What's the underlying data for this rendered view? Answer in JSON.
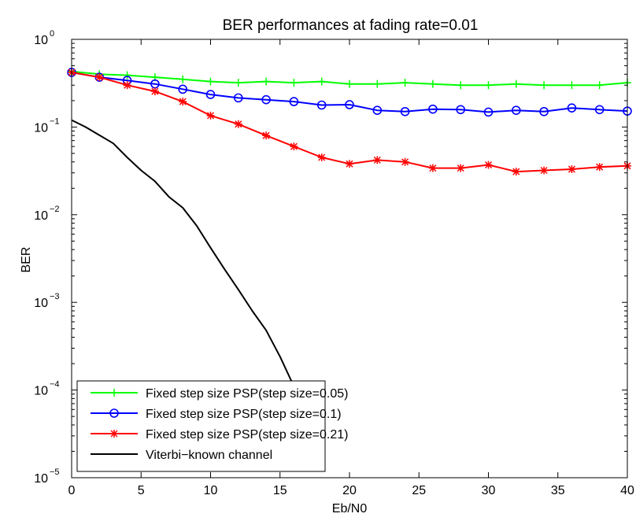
{
  "chart_data": {
    "type": "line",
    "title": "BER performances at fading rate=0.01",
    "xlabel": "Eb/N0",
    "ylabel": "BER",
    "xlim": [
      0,
      40
    ],
    "ylim": [
      1e-05,
      1
    ],
    "yscale": "log",
    "grid": false,
    "legend_position": "bottom-left",
    "x_ticks": [
      0,
      5,
      10,
      15,
      20,
      25,
      30,
      35,
      40
    ],
    "y_ticks": [
      {
        "value": 1e-05,
        "base": "10",
        "exp": "−5"
      },
      {
        "value": 0.0001,
        "base": "10",
        "exp": "−4"
      },
      {
        "value": 0.001,
        "base": "10",
        "exp": "−3"
      },
      {
        "value": 0.01,
        "base": "10",
        "exp": "−2"
      },
      {
        "value": 0.1,
        "base": "10",
        "exp": "−1"
      },
      {
        "value": 1,
        "base": "10",
        "exp": "0"
      }
    ],
    "series": [
      {
        "name": "Fixed step size PSP(step size=0.05)",
        "color": "#00ff00",
        "marker": "plus",
        "x": [
          0,
          2,
          4,
          6,
          8,
          10,
          12,
          14,
          16,
          18,
          20,
          22,
          24,
          26,
          28,
          30,
          32,
          34,
          36,
          38,
          40
        ],
        "y": [
          0.43,
          0.4,
          0.39,
          0.37,
          0.35,
          0.33,
          0.32,
          0.33,
          0.32,
          0.33,
          0.31,
          0.31,
          0.32,
          0.31,
          0.3,
          0.3,
          0.31,
          0.3,
          0.3,
          0.3,
          0.32
        ]
      },
      {
        "name": "Fixed step size PSP(step size=0.1)",
        "color": "#0000ff",
        "marker": "circle",
        "x": [
          0,
          2,
          4,
          6,
          8,
          10,
          12,
          14,
          16,
          18,
          20,
          22,
          24,
          26,
          28,
          30,
          32,
          34,
          36,
          38,
          40
        ],
        "y": [
          0.42,
          0.37,
          0.34,
          0.31,
          0.27,
          0.235,
          0.215,
          0.205,
          0.195,
          0.178,
          0.18,
          0.155,
          0.15,
          0.16,
          0.158,
          0.148,
          0.155,
          0.15,
          0.165,
          0.158,
          0.152
        ]
      },
      {
        "name": "Fixed step size PSP(step size=0.21)",
        "color": "#ff0000",
        "marker": "asterisk",
        "x": [
          0,
          2,
          4,
          6,
          8,
          10,
          12,
          14,
          16,
          18,
          20,
          22,
          24,
          26,
          28,
          30,
          32,
          34,
          36,
          38,
          40
        ],
        "y": [
          0.42,
          0.37,
          0.3,
          0.255,
          0.195,
          0.135,
          0.108,
          0.08,
          0.06,
          0.045,
          0.038,
          0.042,
          0.04,
          0.034,
          0.034,
          0.037,
          0.031,
          0.032,
          0.033,
          0.035,
          0.036
        ]
      },
      {
        "name": "Viterbi−known channel",
        "color": "#000000",
        "marker": "none",
        "x": [
          0,
          1,
          3,
          4,
          5,
          6,
          7,
          8,
          9,
          10,
          11,
          12,
          13,
          14,
          15,
          16
        ],
        "y": [
          0.12,
          0.1,
          0.065,
          0.045,
          0.032,
          0.024,
          0.016,
          0.012,
          0.0075,
          0.0042,
          0.0024,
          0.0014,
          0.0008,
          0.00048,
          0.00024,
          0.00011
        ]
      }
    ]
  }
}
